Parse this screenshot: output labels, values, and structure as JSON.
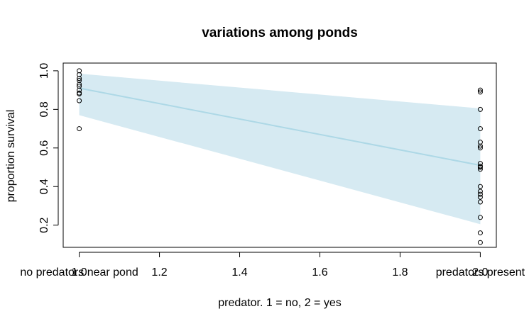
{
  "chart_data": {
    "type": "scatter",
    "title": "variations among ponds",
    "xlabel": "predator. 1 = no, 2 = yes",
    "ylabel": "proportion survival",
    "xlim": [
      0.96,
      2.04
    ],
    "ylim": [
      0.085,
      1.04
    ],
    "x_ticks": [
      1.0,
      1.2,
      1.4,
      1.6,
      1.8,
      2.0
    ],
    "x_tick_labels": [
      "1.0",
      "1.2",
      "1.4",
      "1.6",
      "1.8",
      "2.0"
    ],
    "y_ticks": [
      0.2,
      0.4,
      0.6,
      0.8,
      1.0
    ],
    "y_tick_labels": [
      "0.2",
      "0.4",
      "0.6",
      "0.8",
      "1.0"
    ],
    "group_labels": [
      {
        "x": 1.0,
        "text": "no predators near pond"
      },
      {
        "x": 2.0,
        "text": "predators present"
      }
    ],
    "fit_line": {
      "x": [
        1.0,
        2.0
      ],
      "y": [
        0.91,
        0.51
      ],
      "color": "#add8e6"
    },
    "confidence_band": {
      "x": [
        1.0,
        2.0
      ],
      "lower": [
        0.77,
        0.205
      ],
      "upper": [
        0.985,
        0.805
      ],
      "color": "#d6eaf2"
    },
    "points": {
      "x": [
        1,
        1,
        1,
        1,
        1,
        1,
        1,
        1,
        1,
        1,
        1,
        2,
        2,
        2,
        2,
        2,
        2,
        2,
        2,
        2,
        2,
        2,
        2,
        2,
        2,
        2,
        2,
        2,
        2,
        2
      ],
      "y": [
        1.0,
        0.98,
        0.96,
        0.95,
        0.93,
        0.92,
        0.9,
        0.885,
        0.88,
        0.845,
        0.7,
        0.9,
        0.89,
        0.8,
        0.7,
        0.63,
        0.6,
        0.52,
        0.5,
        0.49,
        0.4,
        0.375,
        0.36,
        0.345,
        0.32,
        0.24,
        0.16,
        0.11,
        0.505,
        0.61
      ]
    },
    "grid": false,
    "legend": "none"
  }
}
